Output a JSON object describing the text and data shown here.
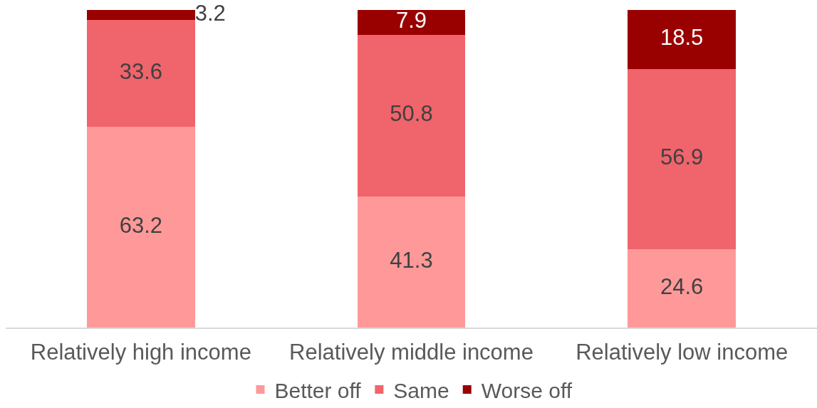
{
  "chart_data": {
    "type": "bar",
    "stacked": true,
    "categories": [
      "Relatively high income",
      "Relatively middle income",
      "Relatively low income"
    ],
    "series": [
      {
        "name": "Better off",
        "color": "#ff9999",
        "values": [
          63.2,
          41.3,
          24.6
        ]
      },
      {
        "name": "Same",
        "color": "#f0646b",
        "values": [
          33.6,
          50.8,
          56.9
        ]
      },
      {
        "name": "Worse off",
        "color": "#990000",
        "values": [
          3.2,
          7.9,
          18.5
        ]
      }
    ],
    "data_labels": true,
    "legend": "bottom",
    "tick_labels": "x"
  }
}
